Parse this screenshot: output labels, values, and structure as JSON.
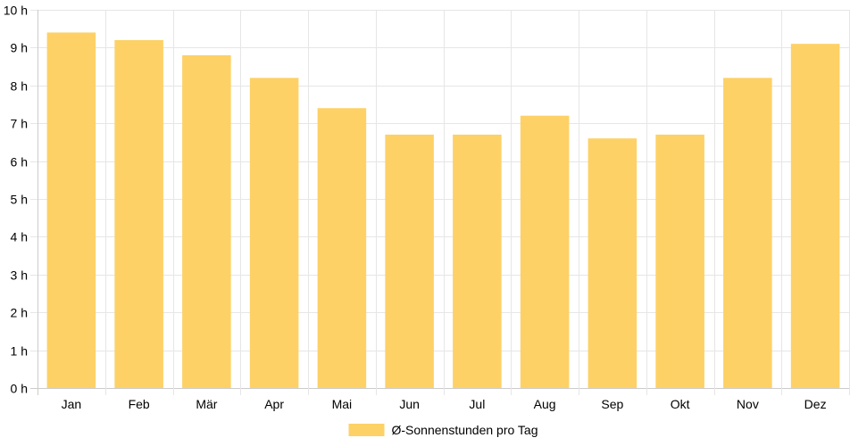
{
  "chart_data": {
    "type": "bar",
    "categories": [
      "Jan",
      "Feb",
      "Mär",
      "Apr",
      "Mai",
      "Jun",
      "Jul",
      "Aug",
      "Sep",
      "Okt",
      "Nov",
      "Dez"
    ],
    "series": [
      {
        "name": "Ø-Sonnenstunden pro Tag",
        "values": [
          9.4,
          9.2,
          8.8,
          8.2,
          7.4,
          6.7,
          6.7,
          7.2,
          6.6,
          6.7,
          8.2,
          9.1
        ],
        "color": "#fdd166"
      }
    ],
    "yticks": [
      "0 h",
      "1 h",
      "2 h",
      "3 h",
      "4 h",
      "5 h",
      "6 h",
      "7 h",
      "8 h",
      "9 h",
      "10 h"
    ],
    "ylim": [
      0,
      10
    ],
    "grid": true,
    "legend_position": "bottom",
    "grid_color": "#e6e6e6",
    "axis_color": "#cccccc"
  }
}
